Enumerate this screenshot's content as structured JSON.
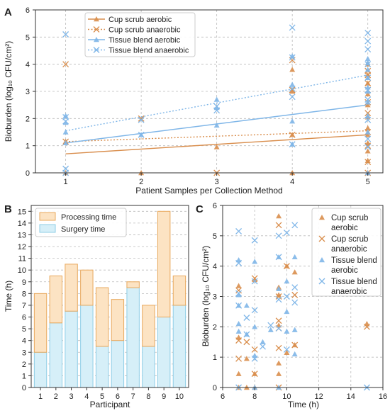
{
  "chart_data": [
    {
      "panel": "A",
      "type": "scatter",
      "xlabel": "Patient Samples per Collection Method",
      "ylabel": "Bioburden (log₁₀ CFU/cm²)",
      "xlim": [
        0.6,
        5.2
      ],
      "ylim": [
        0,
        6
      ],
      "xticks": [
        1,
        2,
        3,
        4,
        5
      ],
      "yticks": [
        0,
        1,
        2,
        3,
        4,
        5,
        6
      ],
      "grid": "horizontal+vertical dashed",
      "legend_position": "top-left",
      "series": [
        {
          "name": "Cup scrub aerobic",
          "marker": "triangle",
          "color": "#d98e4d",
          "line": "solid",
          "x": [
            1,
            1,
            2,
            3,
            4,
            4,
            4,
            4,
            5,
            5,
            5,
            5,
            5,
            5,
            5,
            5,
            5,
            5,
            5,
            5
          ],
          "y": [
            1.15,
            0,
            0,
            0.95,
            0,
            1.4,
            3.0,
            3.8,
            0,
            0.45,
            0.8,
            1.1,
            1.4,
            1.65,
            2.05,
            2.5,
            2.9,
            3.3,
            3.6,
            4.0
          ],
          "fit": [
            [
              1,
              0.7
            ],
            [
              5,
              1.4
            ]
          ]
        },
        {
          "name": "Cup scrub anaerobic",
          "marker": "x",
          "color": "#d98e4d",
          "line": "dotted",
          "x": [
            1,
            1,
            2,
            3,
            4,
            4,
            4,
            5,
            5,
            5,
            5,
            5,
            5,
            5,
            5,
            5,
            5
          ],
          "y": [
            4.0,
            1.15,
            2.0,
            0,
            1.4,
            3.05,
            4.15,
            0,
            0.4,
            1.0,
            1.5,
            2.2,
            2.6,
            3.05,
            3.3,
            3.6,
            3.75
          ],
          "fit": [
            [
              1,
              1.15
            ],
            [
              5,
              1.55
            ]
          ]
        },
        {
          "name": "Tissue blend aerobic",
          "marker": "triangle",
          "color": "#7fb6e8",
          "line": "solid",
          "x": [
            1,
            1,
            1,
            1,
            2,
            3,
            3,
            3,
            4,
            4,
            4,
            4,
            5,
            5,
            5,
            5,
            5,
            5,
            5,
            5,
            5,
            5
          ],
          "y": [
            1.5,
            1.85,
            2.1,
            1.1,
            1.4,
            1.75,
            2.4,
            2.7,
            1.05,
            1.9,
            3.25,
            4.3,
            0,
            1.5,
            2.1,
            2.6,
            3.0,
            3.15,
            3.5,
            3.8,
            4.05,
            4.2
          ],
          "fit": [
            [
              1,
              1.1
            ],
            [
              5,
              2.5
            ]
          ]
        },
        {
          "name": "Tissue blend anaerobic",
          "marker": "x",
          "color": "#7fb6e8",
          "line": "dotted",
          "x": [
            1,
            1,
            1,
            1,
            1,
            2,
            2,
            3,
            3,
            4,
            4,
            4,
            4,
            4,
            5,
            5,
            5,
            5,
            5,
            5,
            5,
            5,
            5,
            5
          ],
          "y": [
            5.1,
            2.05,
            1.9,
            0.15,
            0,
            1.95,
            1.4,
            2.45,
            2.3,
            1.05,
            2.8,
            3.1,
            4.25,
            5.35,
            0.95,
            1.25,
            1.95,
            2.7,
            3.05,
            3.5,
            4.0,
            4.55,
            4.85,
            5.15
          ],
          "fit": [
            [
              1,
              1.55
            ],
            [
              5,
              3.6
            ]
          ]
        }
      ]
    },
    {
      "panel": "B",
      "type": "bar",
      "stacked": true,
      "xlabel": "Participant",
      "ylabel": "Time (h)",
      "categories": [
        "1",
        "2",
        "3",
        "4",
        "5",
        "6",
        "7",
        "8",
        "9",
        "10"
      ],
      "ylim": [
        0,
        15.5
      ],
      "yticks": [
        0,
        1,
        2,
        3,
        4,
        5,
        6,
        7,
        8,
        9,
        10,
        11,
        12,
        13,
        14,
        15
      ],
      "grid": "horizontal dashed",
      "legend_position": "top-left",
      "series": [
        {
          "name": "Surgery time",
          "color": "#d6eff8",
          "edge": "#8ecde6",
          "values": [
            3,
            5.5,
            6.5,
            7,
            3.5,
            4,
            8.5,
            3.5,
            6,
            7
          ]
        },
        {
          "name": "Processing time",
          "color": "#fce3c3",
          "edge": "#e8a85c",
          "values": [
            5,
            4,
            4,
            3,
            5,
            3.5,
            0.5,
            3.5,
            9,
            2.5
          ]
        }
      ]
    },
    {
      "panel": "C",
      "type": "scatter",
      "xlabel": "Time (h)",
      "ylabel": "Bioburden (log₁₀ CFU/cm²)",
      "xlim": [
        6,
        16
      ],
      "ylim": [
        0,
        6
      ],
      "xticks": [
        6,
        8,
        10,
        12,
        14,
        16
      ],
      "yticks": [
        0,
        1,
        2,
        3,
        4,
        5,
        6
      ],
      "grid": "horizontal+vertical dashed",
      "legend_position": "top-right",
      "series": [
        {
          "name": "Cup scrub aerobic",
          "marker": "triangle",
          "color": "#d98e4d",
          "x": [
            7,
            7,
            7,
            7,
            7.5,
            7.5,
            8,
            8,
            8,
            9.5,
            9.5,
            9.5,
            9.5,
            9.5,
            9.5,
            10,
            10,
            10.5,
            10.5,
            15
          ],
          "y": [
            0,
            0.45,
            1.65,
            3.35,
            0,
            0.95,
            0,
            0.45,
            3.55,
            0.45,
            0.8,
            2.05,
            3.05,
            3.3,
            5.65,
            1.15,
            4.0,
            1.4,
            3.8,
            2.1
          ]
        },
        {
          "name": "Cup scrub anaerobic",
          "marker": "x",
          "color": "#d98e4d",
          "x": [
            7,
            7,
            7,
            7.5,
            8,
            8,
            8,
            9.5,
            9.5,
            9.5,
            9.5,
            9.5,
            9.5,
            10,
            10.5,
            10.5,
            15
          ],
          "y": [
            0.95,
            1.55,
            3.2,
            1.5,
            0.45,
            1.25,
            3.6,
            0,
            1.3,
            1.95,
            2.2,
            3.0,
            5.35,
            4.0,
            1.4,
            3.05,
            2.0
          ]
        },
        {
          "name": "Tissue blend aerobic",
          "marker": "triangle",
          "color": "#7fb6e8",
          "x": [
            7,
            7,
            7,
            7,
            7,
            7.5,
            7.5,
            8,
            8,
            8,
            8,
            8.5,
            9,
            9.5,
            9.5,
            9.5,
            10,
            10,
            10,
            10.5,
            10.5,
            10.5
          ],
          "y": [
            1.85,
            2.1,
            2.7,
            3.05,
            4.2,
            1.75,
            2.7,
            0,
            1.05,
            2.0,
            4.15,
            1.5,
            1.9,
            0,
            3.25,
            4.3,
            1.85,
            2.5,
            3.5,
            1.1,
            1.9,
            4.3
          ]
        },
        {
          "name": "Tissue blend anaerobic",
          "marker": "x",
          "color": "#7fb6e8",
          "x": [
            7,
            7,
            7,
            7,
            7,
            7.5,
            7.5,
            8,
            8,
            8,
            8,
            8.5,
            9,
            9.5,
            9.5,
            9.5,
            9.5,
            10,
            10,
            10,
            10.5,
            10.5,
            10.5,
            15
          ],
          "y": [
            5.15,
            4.1,
            3.1,
            2.7,
            0,
            2.3,
            1.75,
            4.85,
            2.55,
            3.5,
            0.95,
            1.35,
            2.05,
            1.95,
            2.9,
            4.3,
            5.0,
            1.25,
            3.0,
            5.1,
            2.8,
            3.3,
            5.35,
            0
          ]
        }
      ]
    }
  ]
}
